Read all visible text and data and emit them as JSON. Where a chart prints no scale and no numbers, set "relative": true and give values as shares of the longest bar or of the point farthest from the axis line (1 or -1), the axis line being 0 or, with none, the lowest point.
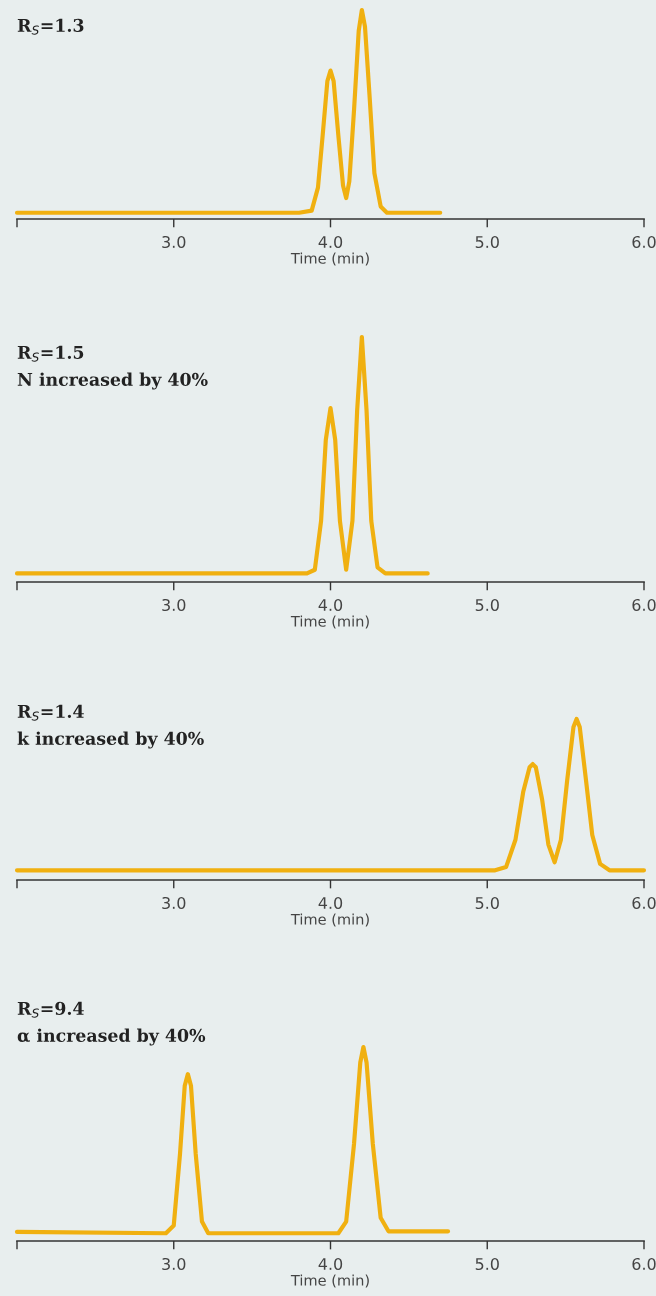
{
  "chart_data": [
    {
      "type": "line",
      "relative": true,
      "title": "R$_{S}$=1.3",
      "xlabel": "Time (min)",
      "xlim": [
        2.0,
        6.0
      ],
      "xticks": [
        {
          "value": 2.0,
          "label": null
        },
        {
          "value": 3.0,
          "label": "3.0"
        },
        {
          "value": 4.0,
          "label": "4.0"
        },
        {
          "value": 5.0,
          "label": "5.0"
        },
        {
          "value": 6.0,
          "label": "6.0"
        }
      ],
      "tick_labels": "x",
      "grid": false,
      "legend": false,
      "marker": "none",
      "line_style": "solid",
      "x": [
        2.0,
        3.8,
        3.88,
        3.92,
        3.95,
        3.98,
        4.0,
        4.02,
        4.05,
        4.08,
        4.1,
        4.12,
        4.15,
        4.18,
        4.2,
        4.22,
        4.25,
        4.28,
        4.32,
        4.36,
        4.7
      ],
      "series": [
        {
          "color": "#f0b010",
          "values": [
            0.03,
            0.03,
            0.04,
            0.15,
            0.4,
            0.66,
            0.71,
            0.66,
            0.4,
            0.16,
            0.1,
            0.18,
            0.52,
            0.9,
            1.0,
            0.92,
            0.58,
            0.22,
            0.06,
            0.03,
            0.03
          ]
        }
      ]
    },
    {
      "type": "line",
      "relative": true,
      "title": "R$_{S}$=1.5",
      "subtitle": "N increased by 40%",
      "xlabel": "Time (min)",
      "xlim": [
        2.0,
        6.0
      ],
      "xticks": [
        {
          "value": 2.0,
          "label": null
        },
        {
          "value": 3.0,
          "label": "3.0"
        },
        {
          "value": 4.0,
          "label": "4.0"
        },
        {
          "value": 5.0,
          "label": "5.0"
        },
        {
          "value": 6.0,
          "label": "6.0"
        }
      ],
      "tick_labels": "x",
      "grid": false,
      "legend": false,
      "marker": "none",
      "line_style": "solid",
      "x": [
        2.0,
        3.85,
        3.9,
        3.94,
        3.97,
        4.0,
        4.03,
        4.06,
        4.1,
        4.14,
        4.17,
        4.2,
        4.23,
        4.26,
        4.3,
        4.35,
        4.62
      ],
      "series": [
        {
          "color": "#f0b010",
          "values": [
            0.035,
            0.035,
            0.05,
            0.25,
            0.58,
            0.71,
            0.58,
            0.25,
            0.05,
            0.25,
            0.7,
            1.0,
            0.7,
            0.25,
            0.06,
            0.035,
            0.035
          ]
        }
      ]
    },
    {
      "type": "line",
      "relative": true,
      "title": "R$_{S}$=1.4",
      "subtitle": "k increased by 40%",
      "xlabel": "Time (min)",
      "xlim": [
        2.0,
        6.0
      ],
      "xticks": [
        {
          "value": 2.0,
          "label": null
        },
        {
          "value": 3.0,
          "label": "3.0"
        },
        {
          "value": 4.0,
          "label": "4.0"
        },
        {
          "value": 5.0,
          "label": "5.0"
        },
        {
          "value": 6.0,
          "label": "6.0"
        }
      ],
      "tick_labels": "x",
      "grid": false,
      "legend": false,
      "marker": "none",
      "line_style": "solid",
      "x": [
        2.0,
        5.05,
        5.12,
        5.18,
        5.23,
        5.27,
        5.29,
        5.31,
        5.35,
        5.39,
        5.43,
        5.47,
        5.51,
        5.55,
        5.57,
        5.59,
        5.63,
        5.67,
        5.72,
        5.78,
        6.0
      ],
      "series": [
        {
          "color": "#f0b010",
          "values": [
            0.06,
            0.06,
            0.08,
            0.25,
            0.55,
            0.7,
            0.72,
            0.7,
            0.5,
            0.22,
            0.11,
            0.25,
            0.62,
            0.95,
            1.0,
            0.95,
            0.62,
            0.28,
            0.1,
            0.06,
            0.06
          ]
        }
      ]
    },
    {
      "type": "line",
      "relative": true,
      "title": "R$_{S}$=9.4",
      "subtitle": "α increased by 40%",
      "xlabel": "Time (min)",
      "xlim": [
        2.0,
        6.0
      ],
      "xticks": [
        {
          "value": 2.0,
          "label": null
        },
        {
          "value": 3.0,
          "label": "3.0"
        },
        {
          "value": 4.0,
          "label": "4.0"
        },
        {
          "value": 5.0,
          "label": "5.0"
        },
        {
          "value": 6.0,
          "label": "6.0"
        }
      ],
      "tick_labels": "x",
      "grid": false,
      "legend": false,
      "marker": "none",
      "line_style": "solid",
      "x": [
        2.0,
        2.95,
        3.0,
        3.04,
        3.07,
        3.09,
        3.11,
        3.14,
        3.18,
        3.22,
        4.05,
        4.1,
        4.15,
        4.19,
        4.21,
        4.23,
        4.27,
        4.32,
        4.37,
        4.75
      ],
      "series": [
        {
          "color": "#f0b010",
          "values": [
            0.047,
            0.04,
            0.08,
            0.45,
            0.8,
            0.86,
            0.8,
            0.45,
            0.1,
            0.04,
            0.04,
            0.1,
            0.5,
            0.92,
            1.0,
            0.92,
            0.5,
            0.12,
            0.05,
            0.05
          ]
        }
      ]
    }
  ]
}
